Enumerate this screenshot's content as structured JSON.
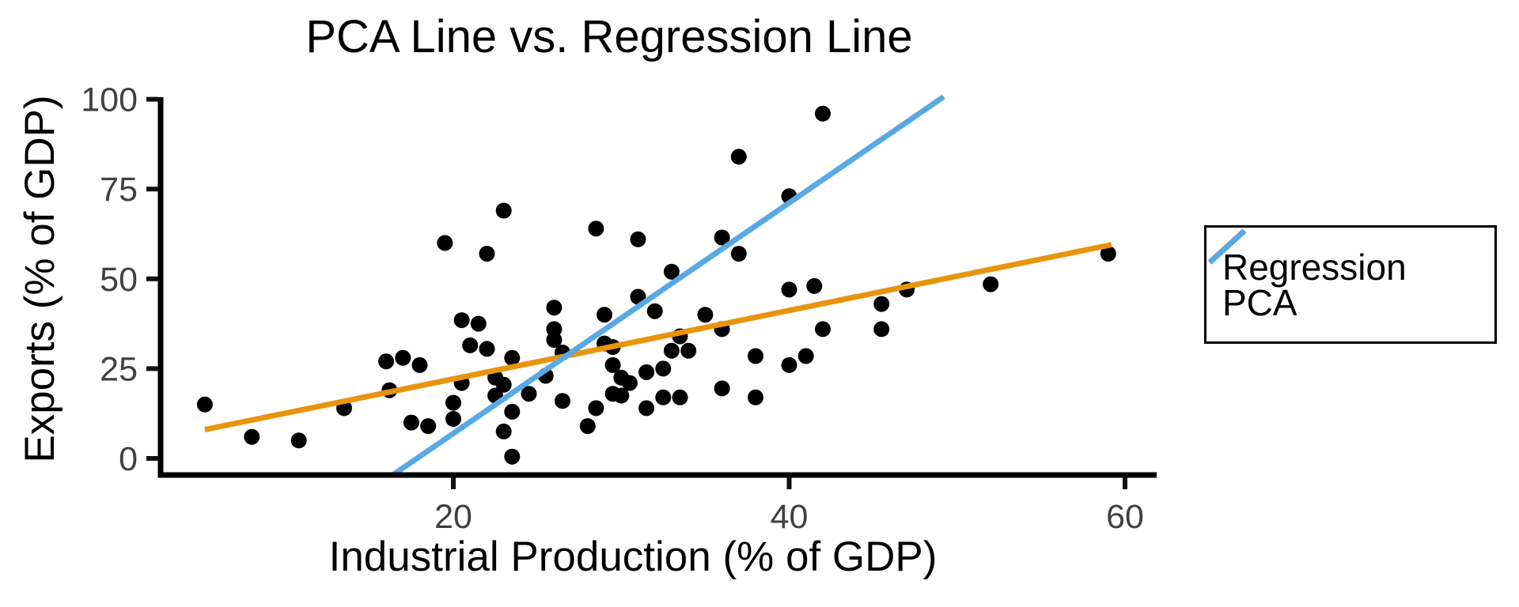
{
  "chart_data": {
    "type": "scatter",
    "title": "PCA Line vs. Regression Line",
    "xlabel": "Industrial Production (% of GDP)",
    "ylabel": "Exports (% of GDP)",
    "x_ticks": [
      "20",
      "40",
      "60"
    ],
    "x_tick_values": [
      20,
      40,
      60
    ],
    "y_ticks": [
      "0",
      "25",
      "50",
      "75",
      "100"
    ],
    "y_tick_values": [
      0,
      25,
      50,
      75,
      100
    ],
    "xlim": [
      2.5,
      62
    ],
    "ylim": [
      -4.7,
      100.7
    ],
    "grid": "off",
    "point_color": "#000000",
    "points": [
      [
        5.2,
        15
      ],
      [
        8,
        6
      ],
      [
        10.8,
        5
      ],
      [
        13.5,
        14
      ],
      [
        16,
        27
      ],
      [
        17,
        28
      ],
      [
        18,
        26
      ],
      [
        16.2,
        19
      ],
      [
        17.5,
        10
      ],
      [
        18.5,
        9
      ],
      [
        20,
        11
      ],
      [
        20.5,
        38.5
      ],
      [
        21.5,
        37.5
      ],
      [
        21,
        31.5
      ],
      [
        22,
        30.5
      ],
      [
        20.5,
        21
      ],
      [
        20,
        15.5
      ],
      [
        22.5,
        17.5
      ],
      [
        19.5,
        60
      ],
      [
        22,
        57
      ],
      [
        23,
        69
      ],
      [
        28.5,
        64
      ],
      [
        31,
        61
      ],
      [
        37,
        84
      ],
      [
        33,
        52
      ],
      [
        36,
        61.5
      ],
      [
        37,
        57
      ],
      [
        40,
        73
      ],
      [
        42,
        96
      ],
      [
        26,
        42
      ],
      [
        23.5,
        28
      ],
      [
        22.5,
        22.5
      ],
      [
        23,
        20.5
      ],
      [
        23.5,
        13
      ],
      [
        23,
        7.5
      ],
      [
        23.5,
        0.5
      ],
      [
        24.5,
        18
      ],
      [
        25.5,
        23
      ],
      [
        26.5,
        16
      ],
      [
        26.5,
        29.5
      ],
      [
        26,
        36
      ],
      [
        26,
        33
      ],
      [
        28,
        9
      ],
      [
        28.5,
        14
      ],
      [
        29,
        32
      ],
      [
        29.5,
        31
      ],
      [
        29,
        40
      ],
      [
        31,
        45
      ],
      [
        29.5,
        26
      ],
      [
        30,
        22.5
      ],
      [
        30.5,
        21
      ],
      [
        29.5,
        18
      ],
      [
        30,
        17.5
      ],
      [
        31.5,
        24
      ],
      [
        32,
        41
      ],
      [
        31.5,
        14
      ],
      [
        32.5,
        25
      ],
      [
        32.5,
        17
      ],
      [
        33,
        30
      ],
      [
        33.5,
        34
      ],
      [
        33.5,
        17
      ],
      [
        34,
        30
      ],
      [
        35,
        40
      ],
      [
        36,
        19.5
      ],
      [
        36,
        36
      ],
      [
        38,
        17
      ],
      [
        38,
        28.5
      ],
      [
        40,
        26
      ],
      [
        40,
        47
      ],
      [
        41,
        28.5
      ],
      [
        41.5,
        48
      ],
      [
        47,
        47
      ],
      [
        45.5,
        43
      ],
      [
        52,
        48.5
      ],
      [
        42,
        36
      ],
      [
        45.5,
        36
      ],
      [
        59,
        57
      ]
    ],
    "lines": [
      {
        "name": "Regression",
        "color": "#E8940C",
        "slope": 0.95,
        "intercept": 3.1,
        "x1": 5.2,
        "y1": 8.0,
        "x2": 59.2,
        "y2": 59.5
      },
      {
        "name": "PCA",
        "color": "#58A9E4",
        "slope": 3.21,
        "intercept": -57.3,
        "x1": 16.4,
        "y1": -4.6,
        "x2": 49.2,
        "y2": 100.7
      }
    ],
    "legend": {
      "position": "right",
      "items": [
        {
          "label": "Regression",
          "color": "#E8940C"
        },
        {
          "label": "PCA",
          "color": "#58A9E4"
        }
      ]
    }
  }
}
